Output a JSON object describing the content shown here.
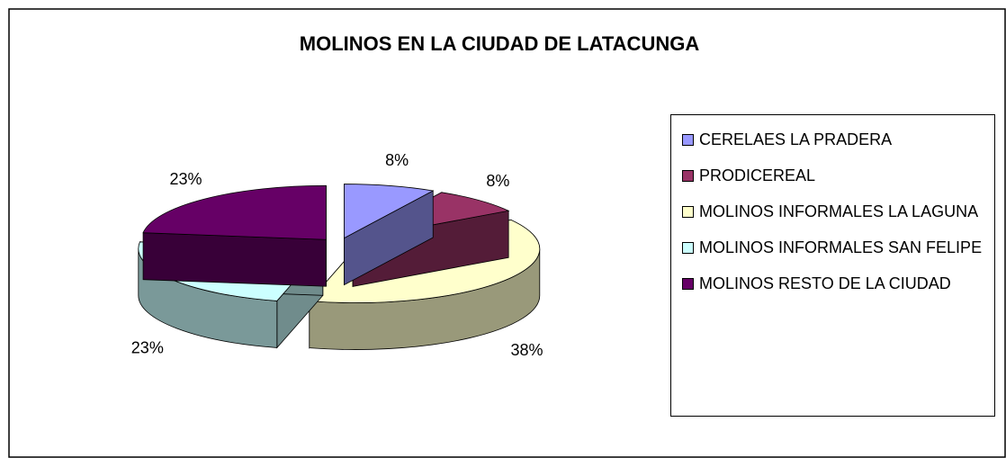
{
  "chart_data": {
    "type": "pie3d",
    "title": "MOLINOS EN LA CIUDAD DE LATACUNGA",
    "categories": [
      "CERELAES LA PRADERA",
      "PRODICEREAL",
      "MOLINOS INFORMALES LA LAGUNA",
      "MOLINOS INFORMALES SAN FELIPE",
      "MOLINOS RESTO DE LA CIUDAD"
    ],
    "values": [
      8,
      8,
      38,
      23,
      23
    ],
    "value_labels": [
      "8%",
      "8%",
      "38%",
      "23%",
      "23%"
    ],
    "colors": [
      "#9999ff",
      "#993366",
      "#ffffcc",
      "#ccffff",
      "#660066"
    ],
    "legend": "right"
  }
}
